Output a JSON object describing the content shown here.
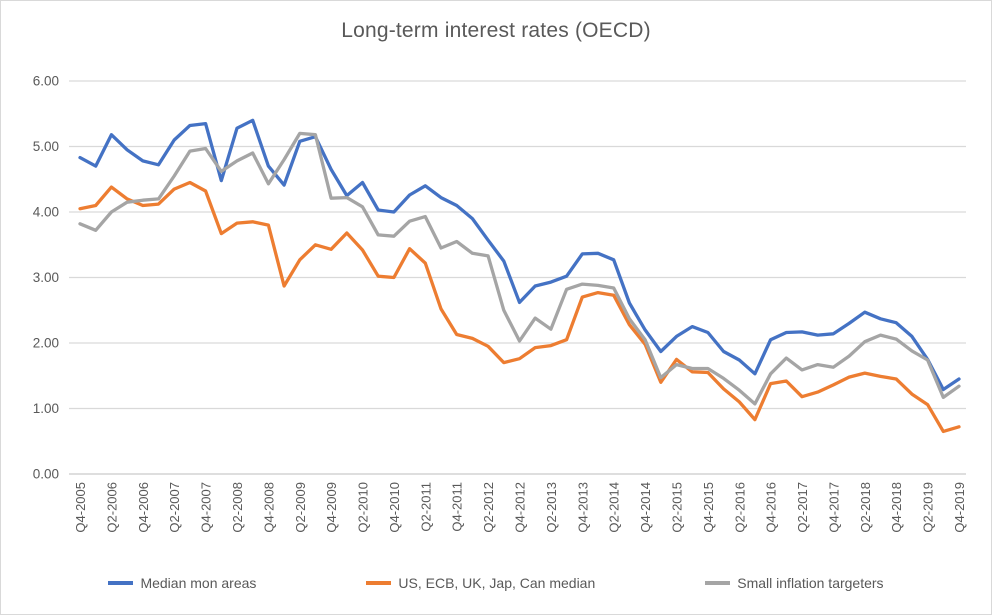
{
  "chart_data": {
    "type": "line",
    "title": "Long-term interest rates (OECD)",
    "xlabel": "",
    "ylabel": "",
    "ylim": [
      0,
      6
    ],
    "y_ticks": [
      "6.00",
      "5.00",
      "4.00",
      "3.00",
      "2.00",
      "1.00",
      "0.00"
    ],
    "grid": true,
    "legend_position": "bottom",
    "x_tick_every_n_points": 2,
    "categories": [
      "Q4-2005",
      "Q1-2006",
      "Q2-2006",
      "Q3-2006",
      "Q4-2006",
      "Q1-2007",
      "Q2-2007",
      "Q3-2007",
      "Q4-2007",
      "Q1-2008",
      "Q2-2008",
      "Q3-2008",
      "Q4-2008",
      "Q1-2009",
      "Q2-2009",
      "Q3-2009",
      "Q4-2009",
      "Q1-2010",
      "Q2-2010",
      "Q3-2010",
      "Q4-2010",
      "Q1-2011",
      "Q2-2011",
      "Q3-2011",
      "Q4-2011",
      "Q1-2012",
      "Q2-2012",
      "Q3-2012",
      "Q4-2012",
      "Q1-2013",
      "Q2-2013",
      "Q3-2013",
      "Q4-2013",
      "Q1-2014",
      "Q2-2014",
      "Q3-2014",
      "Q4-2014",
      "Q1-2015",
      "Q2-2015",
      "Q3-2015",
      "Q4-2015",
      "Q1-2016",
      "Q2-2016",
      "Q3-2016",
      "Q4-2016",
      "Q1-2017",
      "Q2-2017",
      "Q3-2017",
      "Q4-2017",
      "Q1-2018",
      "Q2-2018",
      "Q3-2018",
      "Q4-2018",
      "Q1-2019",
      "Q2-2019",
      "Q3-2019",
      "Q4-2019"
    ],
    "series": [
      {
        "name": "Median mon areas",
        "color": "#4472C4",
        "values": [
          4.83,
          4.7,
          5.18,
          4.95,
          4.78,
          4.72,
          5.1,
          5.32,
          5.35,
          4.48,
          5.28,
          5.4,
          4.7,
          4.41,
          5.08,
          5.15,
          4.65,
          4.25,
          4.45,
          4.03,
          4.0,
          4.26,
          4.4,
          4.22,
          4.1,
          3.9,
          3.57,
          3.25,
          2.62,
          2.87,
          2.93,
          3.02,
          3.36,
          3.37,
          3.27,
          2.61,
          2.2,
          1.87,
          2.1,
          2.25,
          2.16,
          1.87,
          1.74,
          1.53,
          2.05,
          2.16,
          2.17,
          2.12,
          2.14,
          2.3,
          2.47,
          2.37,
          2.31,
          2.1,
          1.75,
          1.29,
          1.45
        ]
      },
      {
        "name": "US, ECB, UK, Jap, Can median",
        "color": "#ED7D31",
        "values": [
          4.05,
          4.1,
          4.38,
          4.2,
          4.1,
          4.12,
          4.35,
          4.45,
          4.32,
          3.67,
          3.83,
          3.85,
          3.8,
          2.87,
          3.27,
          3.5,
          3.43,
          3.68,
          3.42,
          3.02,
          3.0,
          3.44,
          3.22,
          2.52,
          2.13,
          2.07,
          1.95,
          1.7,
          1.76,
          1.93,
          1.96,
          2.05,
          2.7,
          2.77,
          2.73,
          2.28,
          1.98,
          1.4,
          1.75,
          1.56,
          1.55,
          1.3,
          1.1,
          0.83,
          1.38,
          1.42,
          1.18,
          1.25,
          1.36,
          1.48,
          1.54,
          1.49,
          1.45,
          1.22,
          1.06,
          0.65,
          0.72
        ]
      },
      {
        "name": "Small inflation targeters",
        "color": "#A5A5A5",
        "values": [
          3.82,
          3.72,
          4.0,
          4.15,
          4.18,
          4.2,
          4.55,
          4.93,
          4.97,
          4.62,
          4.78,
          4.9,
          4.43,
          4.8,
          5.2,
          5.18,
          4.21,
          4.22,
          4.08,
          3.65,
          3.63,
          3.86,
          3.93,
          3.45,
          3.55,
          3.37,
          3.33,
          2.5,
          2.03,
          2.38,
          2.21,
          2.82,
          2.9,
          2.88,
          2.84,
          2.37,
          2.05,
          1.47,
          1.67,
          1.61,
          1.61,
          1.46,
          1.28,
          1.07,
          1.53,
          1.77,
          1.59,
          1.67,
          1.63,
          1.8,
          2.02,
          2.12,
          2.06,
          1.88,
          1.74,
          1.17,
          1.34
        ]
      }
    ]
  },
  "colors": {
    "grid": "#D9D9D9",
    "axis": "#C9C9C9",
    "text": "#595959",
    "border": "#D9D9D9",
    "background": "#FFFFFF"
  }
}
